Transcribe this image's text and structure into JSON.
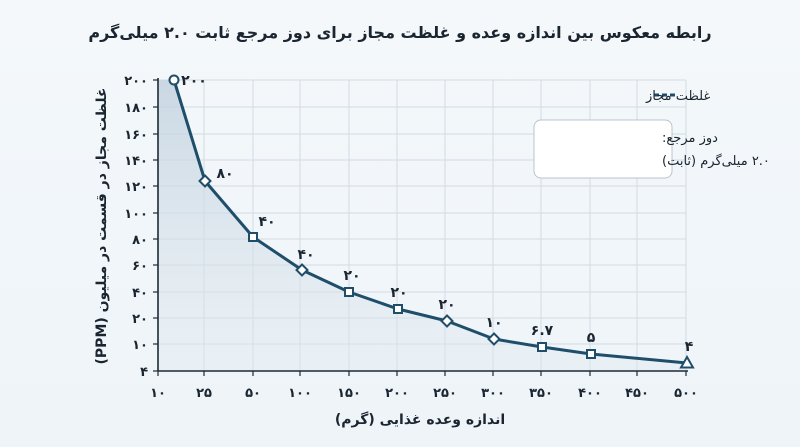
{
  "chart_data": {
    "type": "line",
    "title": "رابطه معکوس بین اندازه وعده و غلظت مجاز برای دوز مرجع ثابت ۲.۰ میلی‌گرم",
    "xlabel": "اندازه وعده غذایی (گرم)",
    "ylabel": "غلظت مجاز در قسمت در میلیون (PPM)",
    "x_ticks": [
      "۱۰",
      "۲۵",
      "۵۰",
      "۱۰۰",
      "۱۵۰",
      "۲۰۰",
      "۲۵۰",
      "۳۰۰",
      "۳۵۰",
      "۴۰۰",
      "۴۵۰",
      "۵۰۰"
    ],
    "y_ticks": [
      "۴",
      "۱۰",
      "۲۰",
      "۴۰",
      "۶۰",
      "۸۰",
      "۱۰۰",
      "۱۲۰",
      "۱۴۰",
      "۱۶۰",
      "۱۸۰",
      "۲۰۰"
    ],
    "series": [
      {
        "name": "غلظت مجاز",
        "color": "#1f4e6b",
        "points": [
          {
            "x": 10,
            "y": 200,
            "label": "۲۰۰",
            "marker": "circle"
          },
          {
            "x": 25,
            "y": 80,
            "label": "۸۰",
            "marker": "diamond"
          },
          {
            "x": 50,
            "y": 40,
            "label": "۴۰",
            "marker": "square"
          },
          {
            "x": 100,
            "y": 40,
            "label": "۴۰",
            "marker": "diamond"
          },
          {
            "x": 150,
            "y": 20,
            "label": "۲۰",
            "marker": "square"
          },
          {
            "x": 200,
            "y": 20,
            "label": "۲۰",
            "marker": "square"
          },
          {
            "x": 250,
            "y": 20,
            "label": "۲۰",
            "marker": "diamond"
          },
          {
            "x": 300,
            "y": 10,
            "label": "۱۰",
            "marker": "diamond"
          },
          {
            "x": 350,
            "y": 6.7,
            "label": "۶.۷",
            "marker": "square"
          },
          {
            "x": 400,
            "y": 5,
            "label": "۵",
            "marker": "square"
          },
          {
            "x": 500,
            "y": 4,
            "label": "۴",
            "marker": "triangle"
          }
        ]
      }
    ],
    "legend": {
      "label": "غلظت مجاز",
      "position": "top-right"
    },
    "annotation": {
      "line1": "دوز مرجع:",
      "line2": "۲.۰ میلی‌گرم (ثابت)"
    },
    "grid": true,
    "colors": {
      "line": "#1f4e6b",
      "fill": "#c9d7e3",
      "grid": "#d3dbe2",
      "axis": "#1f2a33"
    }
  }
}
